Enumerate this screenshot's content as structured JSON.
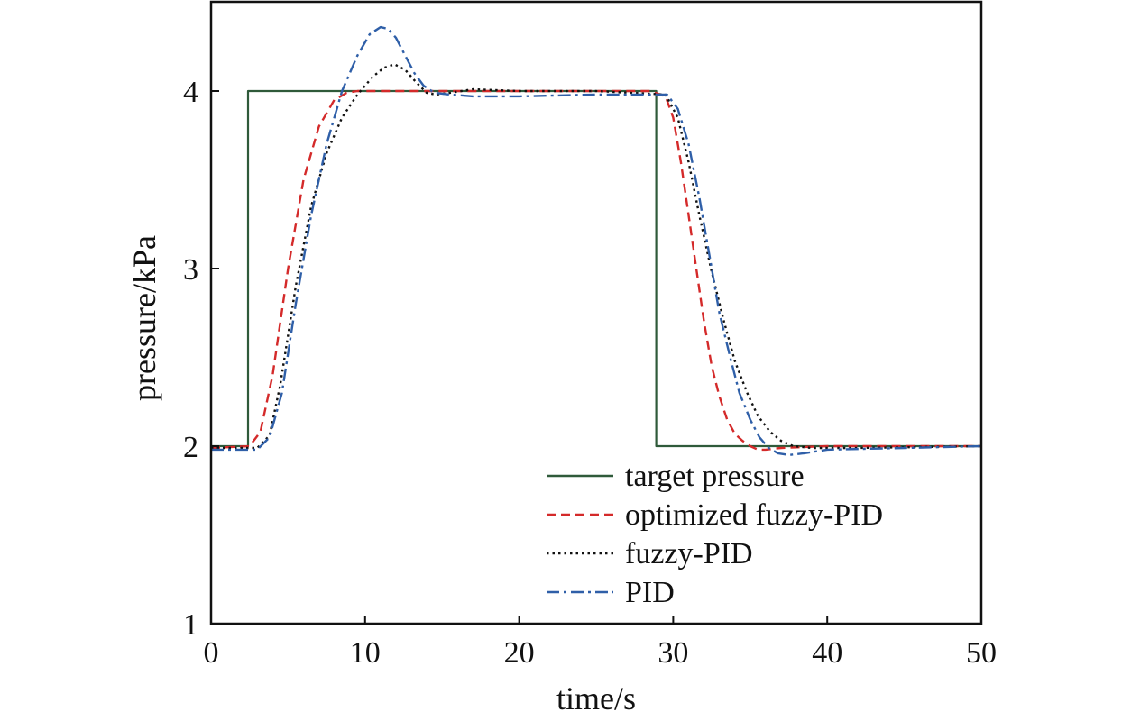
{
  "chart_data": {
    "type": "line",
    "title": "",
    "xlabel": "time/s",
    "ylabel": "pressure/kPa",
    "xlim": [
      0,
      50
    ],
    "ylim": [
      1,
      4.5
    ],
    "xticks": [
      0,
      10,
      20,
      30,
      40,
      50
    ],
    "yticks": [
      1,
      2,
      3,
      4
    ],
    "grid": false,
    "legend_position": "bottom-right",
    "series": [
      {
        "name": "target pressure",
        "color": "#2f5a3a",
        "style": "solid",
        "x": [
          0,
          2.4,
          2.4,
          28.9,
          28.9,
          50
        ],
        "y": [
          2.0,
          2.0,
          4.0,
          4.0,
          2.0,
          2.0
        ]
      },
      {
        "name": "optimized fuzzy-PID",
        "color": "#d42a2a",
        "style": "dashed",
        "x": [
          0,
          2.5,
          3.2,
          4.0,
          5.0,
          6.0,
          7.0,
          8.0,
          8.8,
          9.5,
          10.5,
          12,
          15,
          20,
          25,
          28.5,
          29.5,
          30.0,
          30.5,
          31.0,
          31.5,
          32.0,
          32.5,
          33.0,
          33.5,
          34.0,
          34.5,
          35.0,
          35.5,
          36.0,
          37.0,
          40.0,
          50.0
        ],
        "y": [
          1.99,
          2.0,
          2.08,
          2.4,
          3.0,
          3.5,
          3.8,
          3.95,
          3.99,
          4.0,
          4.0,
          4.0,
          4.0,
          4.0,
          4.0,
          4.0,
          3.97,
          3.85,
          3.6,
          3.3,
          3.0,
          2.7,
          2.45,
          2.28,
          2.15,
          2.07,
          2.03,
          2.0,
          1.98,
          1.98,
          1.99,
          2.0,
          2.0
        ]
      },
      {
        "name": "fuzzy-PID",
        "color": "#111111",
        "style": "dotted",
        "x": [
          0,
          3.0,
          3.8,
          4.5,
          5.5,
          6.5,
          7.5,
          8.5,
          9.5,
          10.5,
          11.2,
          11.9,
          12.6,
          13.3,
          14.0,
          14.6,
          15.5,
          17,
          20,
          25,
          29.5,
          30.3,
          31.0,
          31.7,
          32.5,
          33.3,
          34.0,
          34.8,
          35.5,
          36.3,
          37.0,
          37.8,
          39.0,
          42,
          50
        ],
        "y": [
          1.99,
          1.99,
          2.06,
          2.35,
          2.9,
          3.35,
          3.65,
          3.85,
          3.98,
          4.08,
          4.13,
          4.15,
          4.12,
          4.05,
          3.99,
          3.98,
          3.99,
          4.01,
          4.0,
          4.0,
          3.98,
          3.85,
          3.6,
          3.3,
          2.98,
          2.7,
          2.48,
          2.3,
          2.17,
          2.08,
          2.03,
          2.0,
          1.99,
          1.99,
          2.0
        ]
      },
      {
        "name": "PID",
        "color": "#2f5fa8",
        "style": "dash-dot",
        "x": [
          0,
          3.0,
          3.8,
          4.6,
          5.5,
          6.5,
          7.5,
          8.5,
          9.5,
          10.3,
          11.0,
          11.5,
          12.0,
          12.6,
          13.2,
          13.8,
          14.5,
          15.5,
          17,
          20,
          25,
          29.6,
          30.3,
          31.0,
          31.7,
          32.4,
          33.0,
          33.7,
          34.3,
          35.0,
          35.6,
          36.2,
          36.8,
          37.5,
          38.5,
          40,
          45,
          50
        ],
        "y": [
          1.98,
          1.98,
          2.05,
          2.3,
          2.8,
          3.3,
          3.7,
          4.0,
          4.2,
          4.32,
          4.36,
          4.35,
          4.3,
          4.2,
          4.1,
          4.03,
          3.99,
          3.98,
          3.97,
          3.97,
          3.98,
          3.98,
          3.9,
          3.7,
          3.4,
          3.05,
          2.75,
          2.5,
          2.3,
          2.15,
          2.05,
          1.99,
          1.96,
          1.95,
          1.96,
          1.98,
          1.99,
          2.0
        ]
      }
    ]
  }
}
